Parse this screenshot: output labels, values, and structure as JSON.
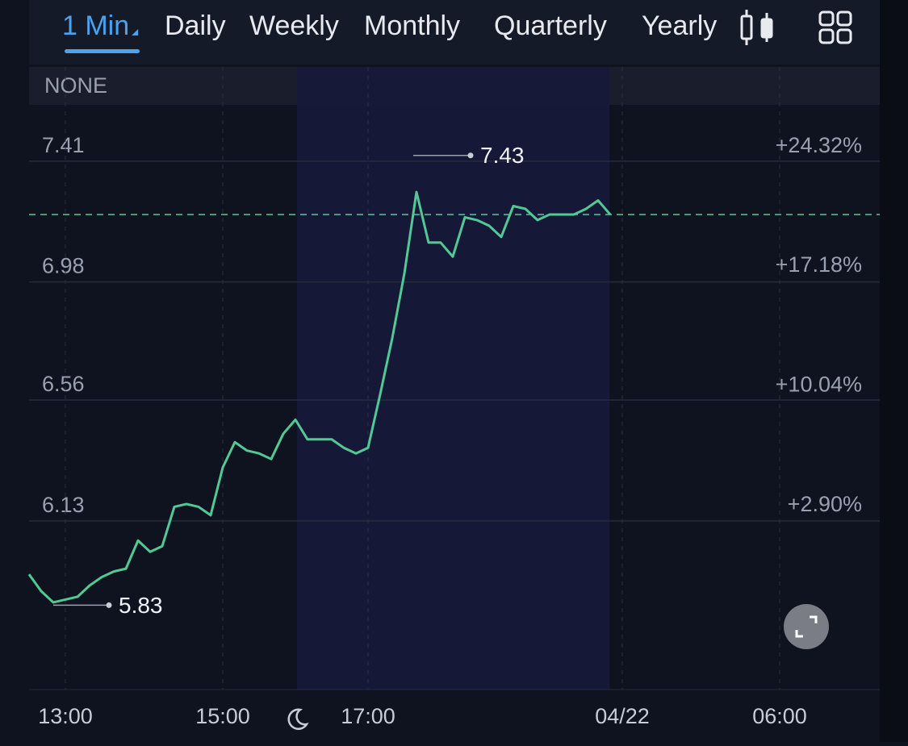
{
  "tabs": [
    {
      "label": "1 Min",
      "active": true
    },
    {
      "label": "Daily",
      "active": false
    },
    {
      "label": "Weekly",
      "active": false
    },
    {
      "label": "Monthly",
      "active": false
    },
    {
      "label": "Quarterly",
      "active": false
    },
    {
      "label": "Yearly",
      "active": false
    }
  ],
  "indicator": "NONE",
  "chart_data": {
    "type": "line",
    "color": "#52c995",
    "categories": [
      null,
      null,
      null,
      "13:00",
      null,
      null,
      null,
      null,
      null,
      null,
      null,
      null,
      null,
      null,
      null,
      null,
      "15:00",
      null,
      null,
      null,
      null,
      null,
      null,
      null,
      null,
      null,
      null,
      null,
      "17:00",
      null,
      null,
      null,
      null,
      null,
      null,
      null,
      null,
      null,
      null,
      null,
      null,
      null,
      null,
      null,
      null,
      null,
      null,
      null,
      null,
      "04/22",
      null,
      null,
      null,
      null,
      null,
      null,
      null,
      null,
      null,
      null,
      null,
      null,
      "06:00",
      null,
      null,
      null,
      null,
      null,
      null,
      null
    ],
    "values": [
      5.94,
      5.88,
      5.84,
      5.85,
      5.86,
      5.9,
      5.93,
      5.95,
      5.96,
      6.06,
      6.02,
      6.04,
      6.18,
      6.19,
      6.18,
      6.15,
      6.32,
      6.41,
      6.38,
      6.37,
      6.35,
      6.44,
      6.49,
      6.42,
      6.42,
      6.42,
      6.39,
      6.37,
      6.39,
      6.58,
      6.78,
      7.01,
      7.3,
      7.12,
      7.12,
      7.07,
      7.21,
      7.2,
      7.18,
      7.14,
      7.25,
      7.24,
      7.2,
      7.22,
      7.22,
      7.22,
      7.24,
      7.27,
      7.22,
      null,
      null,
      null,
      null,
      null,
      null,
      null,
      null,
      null,
      null,
      null,
      null,
      null,
      null,
      null,
      null,
      null,
      null,
      null,
      null,
      null
    ],
    "ylim": [
      5.53,
      7.61
    ],
    "yticks": [
      7.41,
      6.98,
      6.56,
      6.13
    ],
    "y2lim": [
      -7.22,
      27.68
    ],
    "y2ticks": [
      {
        "value": 24.32,
        "label": "+24.32%"
      },
      {
        "value": 17.18,
        "label": "+17.18%"
      },
      {
        "value": 10.04,
        "label": "+10.04%"
      },
      {
        "value": 2.9,
        "label": "+2.90%"
      }
    ],
    "last_price": 7.22,
    "annotations": [
      {
        "value": 7.43
      },
      {
        "value": 5.83
      }
    ],
    "grid": true
  }
}
